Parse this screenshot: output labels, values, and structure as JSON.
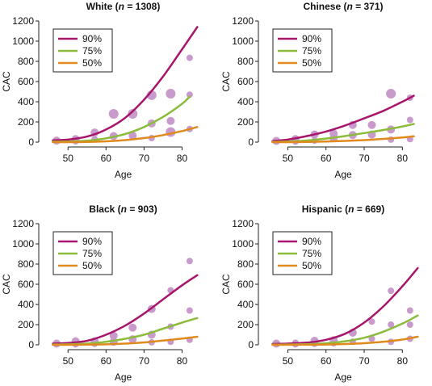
{
  "colors": {
    "p90": "#a8166b",
    "p75": "#8cbc3c",
    "p50": "#e08a1e",
    "points": "#c89bcc",
    "axis": "#222222"
  },
  "chart_data": [
    {
      "type": "scatter",
      "title_main": "White (",
      "title_italic": "n",
      "title_rest": " = 1308)",
      "xlabel": "Age",
      "ylabel": "CAC",
      "xlim": [
        44,
        85
      ],
      "ylim": [
        0,
        1200
      ],
      "xticks": [
        50,
        60,
        70,
        80
      ],
      "yticks": [
        0,
        200,
        400,
        600,
        800,
        1000,
        1200
      ],
      "legend": [
        "90%",
        "75%",
        "50%"
      ],
      "legend_position": "top-left",
      "series": [
        {
          "name": "90%",
          "x": [
            46,
            50,
            55,
            60,
            65,
            70,
            75,
            80,
            84
          ],
          "y": [
            18,
            25,
            55,
            125,
            240,
            420,
            650,
            920,
            1140
          ]
        },
        {
          "name": "75%",
          "x": [
            46,
            50,
            55,
            60,
            65,
            70,
            75,
            80,
            82
          ],
          "y": [
            5,
            6,
            14,
            38,
            80,
            150,
            250,
            380,
            450
          ]
        },
        {
          "name": "50%",
          "x": [
            46,
            50,
            55,
            60,
            65,
            70,
            75,
            80,
            84
          ],
          "y": [
            0,
            0,
            2,
            8,
            20,
            40,
            70,
            110,
            150
          ]
        }
      ],
      "points": [
        {
          "x": 47,
          "y": 15,
          "size": 5
        },
        {
          "x": 52,
          "y": 30,
          "size": 5
        },
        {
          "x": 52,
          "y": 8,
          "size": 4
        },
        {
          "x": 57,
          "y": 95,
          "size": 5
        },
        {
          "x": 57,
          "y": 30,
          "size": 4
        },
        {
          "x": 62,
          "y": 280,
          "size": 6
        },
        {
          "x": 62,
          "y": 60,
          "size": 5
        },
        {
          "x": 67,
          "y": 280,
          "size": 6
        },
        {
          "x": 67,
          "y": 65,
          "size": 5
        },
        {
          "x": 72,
          "y": 465,
          "size": 6
        },
        {
          "x": 72,
          "y": 185,
          "size": 5
        },
        {
          "x": 72,
          "y": 40,
          "size": 4
        },
        {
          "x": 77,
          "y": 480,
          "size": 6
        },
        {
          "x": 77,
          "y": 210,
          "size": 5
        },
        {
          "x": 77,
          "y": 100,
          "size": 6
        },
        {
          "x": 82,
          "y": 835,
          "size": 4
        },
        {
          "x": 82,
          "y": 470,
          "size": 4
        },
        {
          "x": 82,
          "y": 130,
          "size": 4
        }
      ]
    },
    {
      "type": "scatter",
      "title_main": "Chinese (",
      "title_italic": "n",
      "title_rest": " = 371)",
      "xlabel": "Age",
      "ylabel": "CAC",
      "xlim": [
        44,
        85
      ],
      "ylim": [
        0,
        1200
      ],
      "xticks": [
        50,
        60,
        70,
        80
      ],
      "yticks": [
        0,
        200,
        400,
        600,
        800,
        1000,
        1200
      ],
      "legend": [
        "90%",
        "75%",
        "50%"
      ],
      "legend_position": "top-left",
      "series": [
        {
          "name": "90%",
          "x": [
            46,
            50,
            55,
            60,
            65,
            70,
            75,
            80,
            83
          ],
          "y": [
            10,
            25,
            60,
            105,
            165,
            235,
            310,
            400,
            460
          ]
        },
        {
          "name": "75%",
          "x": [
            46,
            50,
            55,
            60,
            65,
            70,
            75,
            80,
            83
          ],
          "y": [
            2,
            6,
            16,
            35,
            60,
            90,
            120,
            155,
            180
          ]
        },
        {
          "name": "50%",
          "x": [
            46,
            50,
            55,
            60,
            65,
            70,
            75,
            80,
            83
          ],
          "y": [
            0,
            0,
            2,
            6,
            12,
            20,
            32,
            46,
            58
          ]
        }
      ],
      "points": [
        {
          "x": 47,
          "y": 12,
          "size": 5
        },
        {
          "x": 52,
          "y": 30,
          "size": 5
        },
        {
          "x": 52,
          "y": 5,
          "size": 4
        },
        {
          "x": 57,
          "y": 75,
          "size": 5
        },
        {
          "x": 57,
          "y": 15,
          "size": 4
        },
        {
          "x": 62,
          "y": 85,
          "size": 5
        },
        {
          "x": 62,
          "y": 40,
          "size": 5
        },
        {
          "x": 67,
          "y": 170,
          "size": 5
        },
        {
          "x": 67,
          "y": 70,
          "size": 5
        },
        {
          "x": 72,
          "y": 170,
          "size": 5
        },
        {
          "x": 72,
          "y": 75,
          "size": 5
        },
        {
          "x": 77,
          "y": 480,
          "size": 6
        },
        {
          "x": 77,
          "y": 125,
          "size": 5
        },
        {
          "x": 77,
          "y": 25,
          "size": 4
        },
        {
          "x": 82,
          "y": 440,
          "size": 4
        },
        {
          "x": 82,
          "y": 220,
          "size": 4
        },
        {
          "x": 82,
          "y": 30,
          "size": 4
        }
      ]
    },
    {
      "type": "scatter",
      "title_main": "Black (",
      "title_italic": "n",
      "title_rest": " = 903)",
      "xlabel": "Age",
      "ylabel": "CAC",
      "xlim": [
        44,
        85
      ],
      "ylim": [
        0,
        1200
      ],
      "xticks": [
        50,
        60,
        70,
        80
      ],
      "yticks": [
        0,
        200,
        400,
        600,
        800,
        1000,
        1200
      ],
      "legend": [
        "90%",
        "75%",
        "50%"
      ],
      "legend_position": "top-left",
      "series": [
        {
          "name": "90%",
          "x": [
            46,
            50,
            55,
            60,
            65,
            70,
            75,
            80,
            84
          ],
          "y": [
            12,
            18,
            40,
            100,
            190,
            310,
            450,
            590,
            690
          ]
        },
        {
          "name": "75%",
          "x": [
            46,
            50,
            55,
            60,
            65,
            70,
            75,
            80,
            84
          ],
          "y": [
            3,
            5,
            12,
            30,
            60,
            100,
            160,
            220,
            265
          ]
        },
        {
          "name": "50%",
          "x": [
            46,
            50,
            55,
            60,
            65,
            70,
            75,
            80,
            84
          ],
          "y": [
            0,
            0,
            2,
            5,
            12,
            24,
            42,
            62,
            80
          ]
        }
      ],
      "points": [
        {
          "x": 47,
          "y": 12,
          "size": 5
        },
        {
          "x": 52,
          "y": 35,
          "size": 5
        },
        {
          "x": 52,
          "y": 5,
          "size": 4
        },
        {
          "x": 57,
          "y": 35,
          "size": 5
        },
        {
          "x": 57,
          "y": 10,
          "size": 4
        },
        {
          "x": 62,
          "y": 90,
          "size": 5
        },
        {
          "x": 62,
          "y": 30,
          "size": 5
        },
        {
          "x": 67,
          "y": 170,
          "size": 5
        },
        {
          "x": 67,
          "y": 55,
          "size": 5
        },
        {
          "x": 72,
          "y": 355,
          "size": 5
        },
        {
          "x": 72,
          "y": 100,
          "size": 5
        },
        {
          "x": 72,
          "y": 25,
          "size": 4
        },
        {
          "x": 77,
          "y": 540,
          "size": 4
        },
        {
          "x": 77,
          "y": 180,
          "size": 4
        },
        {
          "x": 77,
          "y": 30,
          "size": 4
        },
        {
          "x": 82,
          "y": 830,
          "size": 4
        },
        {
          "x": 82,
          "y": 340,
          "size": 4
        },
        {
          "x": 82,
          "y": 50,
          "size": 4
        }
      ]
    },
    {
      "type": "scatter",
      "title_main": "Hispanic (",
      "title_italic": "n",
      "title_rest": " = 669)",
      "xlabel": "Age",
      "ylabel": "CAC",
      "xlim": [
        44,
        85
      ],
      "ylim": [
        0,
        1200
      ],
      "xticks": [
        50,
        60,
        70,
        80
      ],
      "yticks": [
        0,
        200,
        400,
        600,
        800,
        1000,
        1200
      ],
      "legend": [
        "90%",
        "75%",
        "50%"
      ],
      "legend_position": "top-left",
      "series": [
        {
          "name": "90%",
          "x": [
            46,
            50,
            55,
            60,
            65,
            70,
            75,
            80,
            84
          ],
          "y": [
            8,
            12,
            22,
            50,
            110,
            220,
            380,
            580,
            760
          ]
        },
        {
          "name": "75%",
          "x": [
            46,
            50,
            55,
            60,
            65,
            70,
            75,
            80,
            84
          ],
          "y": [
            2,
            3,
            6,
            15,
            35,
            70,
            130,
            210,
            290
          ]
        },
        {
          "name": "50%",
          "x": [
            46,
            50,
            55,
            60,
            65,
            70,
            75,
            80,
            84
          ],
          "y": [
            0,
            0,
            1,
            3,
            8,
            16,
            30,
            52,
            80
          ]
        }
      ],
      "points": [
        {
          "x": 47,
          "y": 12,
          "size": 5
        },
        {
          "x": 52,
          "y": 20,
          "size": 4
        },
        {
          "x": 52,
          "y": 5,
          "size": 4
        },
        {
          "x": 57,
          "y": 40,
          "size": 5
        },
        {
          "x": 57,
          "y": 10,
          "size": 4
        },
        {
          "x": 62,
          "y": 45,
          "size": 5
        },
        {
          "x": 62,
          "y": 15,
          "size": 4
        },
        {
          "x": 67,
          "y": 120,
          "size": 5
        },
        {
          "x": 67,
          "y": 30,
          "size": 4
        },
        {
          "x": 72,
          "y": 230,
          "size": 4
        },
        {
          "x": 72,
          "y": 60,
          "size": 4
        },
        {
          "x": 77,
          "y": 535,
          "size": 4
        },
        {
          "x": 77,
          "y": 200,
          "size": 4
        },
        {
          "x": 77,
          "y": 30,
          "size": 4
        },
        {
          "x": 82,
          "y": 340,
          "size": 4
        },
        {
          "x": 82,
          "y": 200,
          "size": 4
        },
        {
          "x": 82,
          "y": 60,
          "size": 4
        }
      ]
    }
  ]
}
